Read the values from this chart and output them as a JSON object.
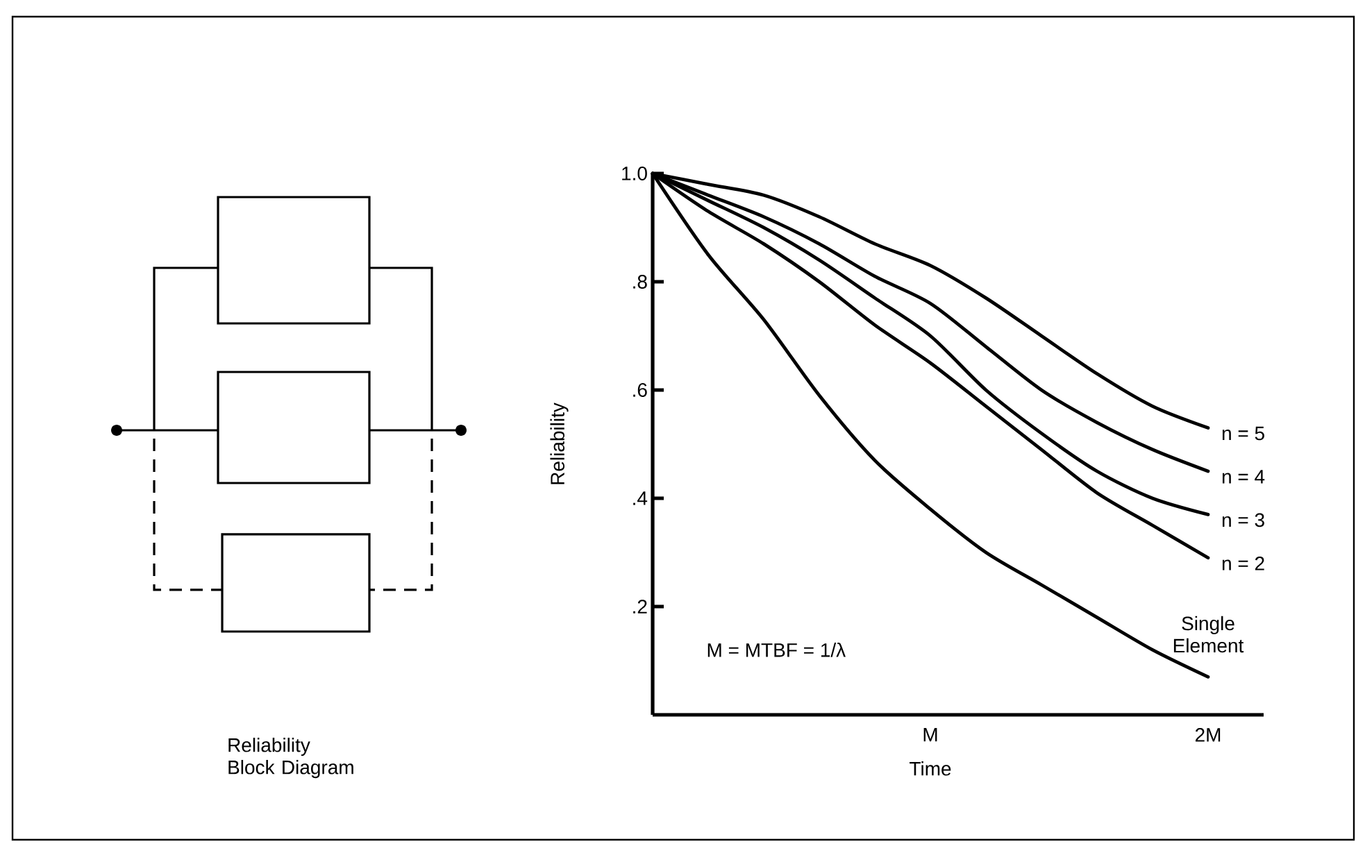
{
  "chart_data": {
    "type": "line",
    "xlabel": "Time",
    "ylabel": "Reliability",
    "categories": [
      null,
      null,
      null,
      null,
      null,
      "M",
      null,
      null,
      null,
      null,
      "2M"
    ],
    "ylim": [
      0,
      1.0
    ],
    "yticks": [
      {
        "value": 0.2,
        "label": ".2"
      },
      {
        "value": 0.4,
        "label": ".4"
      },
      {
        "value": 0.6,
        "label": ".6"
      },
      {
        "value": 0.8,
        "label": ".8"
      },
      {
        "value": 1.0,
        "label": "1.0"
      }
    ],
    "marker": "none",
    "line_style": "solid",
    "grid": false,
    "legend": false,
    "annotations": [
      "M = MTBF = 1/λ",
      "Reliability Block Diagram"
    ],
    "series": [
      {
        "name": "Single Element",
        "color": "#000000",
        "values": [
          1.0,
          0.85,
          0.73,
          0.59,
          0.47,
          0.38,
          0.3,
          0.24,
          0.18,
          0.12,
          0.07
        ]
      },
      {
        "name": "n = 2",
        "color": "#000000",
        "values": [
          1.0,
          0.93,
          0.87,
          0.8,
          0.72,
          0.65,
          0.57,
          0.49,
          0.41,
          0.35,
          0.29
        ]
      },
      {
        "name": "n = 3",
        "color": "#000000",
        "values": [
          1.0,
          0.95,
          0.9,
          0.84,
          0.77,
          0.7,
          0.6,
          0.52,
          0.45,
          0.4,
          0.37
        ]
      },
      {
        "name": "n = 4",
        "color": "#000000",
        "values": [
          1.0,
          0.96,
          0.92,
          0.87,
          0.81,
          0.76,
          0.68,
          0.6,
          0.54,
          0.49,
          0.45
        ]
      },
      {
        "name": "n = 5",
        "color": "#000000",
        "values": [
          1.0,
          0.98,
          0.96,
          0.92,
          0.87,
          0.83,
          0.77,
          0.7,
          0.63,
          0.57,
          0.53
        ]
      }
    ]
  }
}
